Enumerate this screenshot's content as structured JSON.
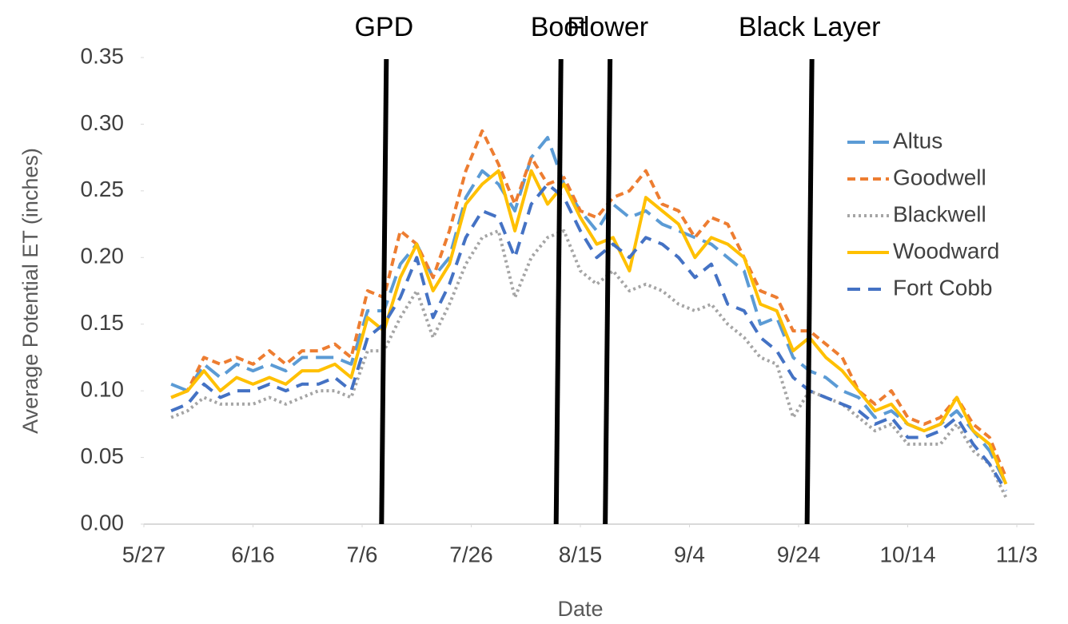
{
  "chart_data": {
    "type": "line",
    "x_label": "Date",
    "y_label": "Average Potential ET (inches)",
    "x": [
      "6/1",
      "6/4",
      "6/7",
      "6/10",
      "6/13",
      "6/16",
      "6/19",
      "6/22",
      "6/25",
      "6/28",
      "7/1",
      "7/4",
      "7/7",
      "7/10",
      "7/13",
      "7/16",
      "7/19",
      "7/22",
      "7/25",
      "7/28",
      "7/31",
      "8/3",
      "8/6",
      "8/9",
      "8/12",
      "8/15",
      "8/18",
      "8/21",
      "8/24",
      "8/27",
      "8/30",
      "9/2",
      "9/5",
      "9/8",
      "9/11",
      "9/14",
      "9/17",
      "9/20",
      "9/23",
      "9/26",
      "9/29",
      "10/2",
      "10/5",
      "10/8",
      "10/11",
      "10/14",
      "10/17",
      "10/20",
      "10/23",
      "10/26",
      "10/29",
      "11/1"
    ],
    "xlim": [
      "5/27",
      "11/3"
    ],
    "xticks": [
      "5/27",
      "6/16",
      "7/6",
      "7/26",
      "8/15",
      "9/4",
      "9/24",
      "10/14",
      "11/3"
    ],
    "ylim": [
      0,
      0.35
    ],
    "yticks": [
      {
        "value": 0,
        "label": "0.00"
      },
      {
        "value": 0.05,
        "label": "0.05"
      },
      {
        "value": 0.1,
        "label": "0.10"
      },
      {
        "value": 0.15,
        "label": "0.15"
      },
      {
        "value": 0.2,
        "label": "0.20"
      },
      {
        "value": 0.25,
        "label": "0.25"
      },
      {
        "value": 0.3,
        "label": "0.30"
      },
      {
        "value": 0.35,
        "label": "0.35"
      }
    ],
    "legend": "right",
    "annotations": [
      {
        "label": "GPD",
        "x": "7/10"
      },
      {
        "label": "Boot",
        "x": "8/11"
      },
      {
        "label": "Flower",
        "x": "8/20"
      },
      {
        "label": "Black Layer",
        "x": "9/26"
      }
    ],
    "series": [
      {
        "name": "Altus",
        "color": "#5b9bd5",
        "dash": "long-dash",
        "values": [
          0.105,
          0.1,
          0.12,
          0.11,
          0.12,
          0.115,
          0.12,
          0.115,
          0.125,
          0.125,
          0.125,
          0.12,
          0.16,
          0.16,
          0.195,
          0.21,
          0.185,
          0.2,
          0.245,
          0.265,
          0.255,
          0.235,
          0.275,
          0.29,
          0.255,
          0.235,
          0.22,
          0.24,
          0.23,
          0.235,
          0.225,
          0.22,
          0.215,
          0.21,
          0.2,
          0.19,
          0.15,
          0.155,
          0.125,
          0.115,
          0.11,
          0.1,
          0.095,
          0.08,
          0.085,
          0.075,
          0.07,
          0.075,
          0.085,
          0.07,
          0.055,
          0.03
        ]
      },
      {
        "name": "Goodwell",
        "color": "#ed7d31",
        "dash": "short-dash",
        "values": [
          0.095,
          0.1,
          0.125,
          0.12,
          0.125,
          0.12,
          0.13,
          0.12,
          0.13,
          0.13,
          0.135,
          0.125,
          0.175,
          0.17,
          0.22,
          0.21,
          0.185,
          0.22,
          0.265,
          0.295,
          0.27,
          0.24,
          0.275,
          0.255,
          0.26,
          0.235,
          0.23,
          0.245,
          0.25,
          0.265,
          0.24,
          0.235,
          0.215,
          0.23,
          0.225,
          0.2,
          0.175,
          0.17,
          0.145,
          0.145,
          0.135,
          0.125,
          0.1,
          0.09,
          0.1,
          0.08,
          0.075,
          0.08,
          0.095,
          0.075,
          0.065,
          0.035
        ]
      },
      {
        "name": "Blackwell",
        "color": "#a5a5a5",
        "dash": "dot",
        "values": [
          0.08,
          0.085,
          0.095,
          0.09,
          0.09,
          0.09,
          0.095,
          0.09,
          0.095,
          0.1,
          0.1,
          0.095,
          0.13,
          0.13,
          0.155,
          0.175,
          0.14,
          0.165,
          0.195,
          0.215,
          0.22,
          0.17,
          0.2,
          0.215,
          0.22,
          0.19,
          0.18,
          0.19,
          0.175,
          0.18,
          0.175,
          0.165,
          0.16,
          0.165,
          0.15,
          0.14,
          0.125,
          0.12,
          0.08,
          0.1,
          0.095,
          0.09,
          0.08,
          0.07,
          0.075,
          0.06,
          0.06,
          0.06,
          0.075,
          0.055,
          0.045,
          0.02
        ]
      },
      {
        "name": "Woodward",
        "color": "#ffc000",
        "dash": "solid",
        "values": [
          0.095,
          0.1,
          0.115,
          0.1,
          0.11,
          0.105,
          0.11,
          0.105,
          0.115,
          0.115,
          0.12,
          0.11,
          0.155,
          0.145,
          0.185,
          0.21,
          0.175,
          0.195,
          0.24,
          0.255,
          0.265,
          0.22,
          0.265,
          0.24,
          0.255,
          0.23,
          0.21,
          0.215,
          0.19,
          0.245,
          0.235,
          0.225,
          0.2,
          0.215,
          0.21,
          0.2,
          0.165,
          0.16,
          0.13,
          0.14,
          0.125,
          0.115,
          0.1,
          0.085,
          0.09,
          0.075,
          0.07,
          0.075,
          0.095,
          0.07,
          0.06,
          0.03
        ]
      },
      {
        "name": "Fort Cobb",
        "color": "#4472c4",
        "dash": "dash",
        "values": [
          0.085,
          0.09,
          0.105,
          0.095,
          0.1,
          0.1,
          0.105,
          0.1,
          0.105,
          0.105,
          0.11,
          0.1,
          0.14,
          0.15,
          0.17,
          0.2,
          0.155,
          0.18,
          0.215,
          0.235,
          0.23,
          0.2,
          0.24,
          0.255,
          0.245,
          0.22,
          0.2,
          0.21,
          0.2,
          0.215,
          0.21,
          0.2,
          0.185,
          0.195,
          0.165,
          0.16,
          0.14,
          0.13,
          0.11,
          0.1,
          0.095,
          0.09,
          0.085,
          0.075,
          0.08,
          0.065,
          0.065,
          0.07,
          0.08,
          0.06,
          0.045,
          0.025
        ]
      }
    ]
  }
}
